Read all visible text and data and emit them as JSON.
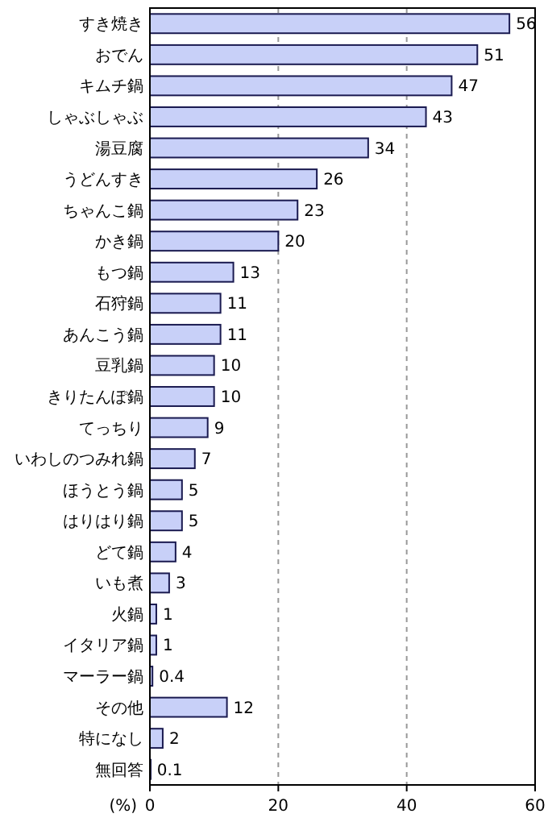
{
  "chart_data": {
    "type": "bar",
    "orientation": "horizontal",
    "xlabel": "(%)",
    "categories": [
      "すき焼き",
      "おでん",
      "キムチ鍋",
      "しゃぶしゃぶ",
      "湯豆腐",
      "うどんすき",
      "ちゃんこ鍋",
      "かき鍋",
      "もつ鍋",
      "石狩鍋",
      "あんこう鍋",
      "豆乳鍋",
      "きりたんぽ鍋",
      "てっちり",
      "いわしのつみれ鍋",
      "ほうとう鍋",
      "はりはり鍋",
      "どて鍋",
      "いも煮",
      "火鍋",
      "イタリア鍋",
      "マーラー鍋",
      "その他",
      "特になし",
      "無回答"
    ],
    "values": [
      56,
      51,
      47,
      43,
      34,
      26,
      23,
      20,
      13,
      11,
      11,
      10,
      10,
      9,
      7,
      5,
      5,
      4,
      3,
      1,
      1,
      0.4,
      12,
      2,
      0.1
    ],
    "color": "#c8d0f8",
    "xlim": [
      0,
      60
    ],
    "xticks": [
      0,
      20,
      40,
      60
    ],
    "grid": "x",
    "data_labels": true
  }
}
